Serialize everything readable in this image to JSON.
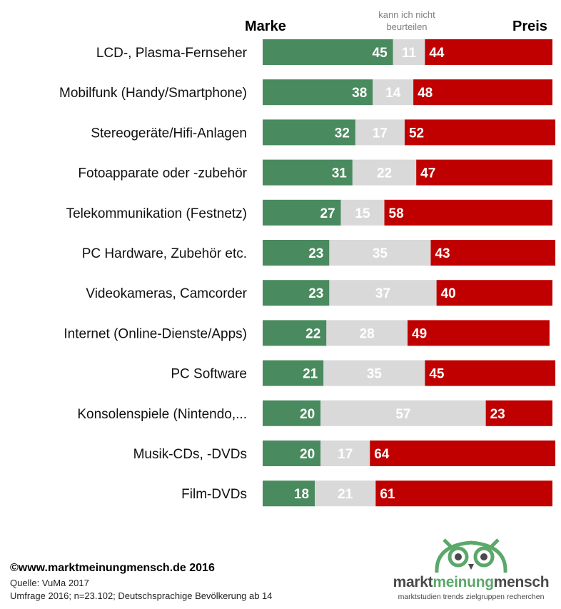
{
  "chart_data": {
    "type": "bar",
    "stacked": true,
    "orientation": "horizontal",
    "header_left": "Marke",
    "header_middle": [
      "kann ich nicht",
      "beurteilen"
    ],
    "header_right": "Preis",
    "categories": [
      "LCD-, Plasma-Fernseher",
      "Mobilfunk (Handy/Smartphone)",
      "Stereogeräte/Hifi-Anlagen",
      "Fotoapparate oder -zubehör",
      "Telekommunikation (Festnetz)",
      "PC Hardware, Zubehör etc.",
      "Videokameras, Camcorder",
      "Internet (Online-Dienste/Apps)",
      "PC Software",
      "Konsolenspiele (Nintendo,...",
      "Musik-CDs, -DVDs",
      "Film-DVDs"
    ],
    "series": [
      {
        "name": "Marke",
        "color": "#4a8a5f",
        "label_color": "#ffffff",
        "values": [
          45,
          38,
          32,
          31,
          27,
          23,
          23,
          22,
          21,
          20,
          20,
          18
        ]
      },
      {
        "name": "kann ich nicht beurteilen",
        "color": "#d9d9d9",
        "label_color": "#ffffff",
        "values": [
          11,
          14,
          17,
          22,
          15,
          35,
          37,
          28,
          35,
          57,
          17,
          21
        ]
      },
      {
        "name": "Preis",
        "color": "#c00000",
        "label_color": "#ffffff",
        "values": [
          44,
          48,
          52,
          47,
          58,
          43,
          40,
          49,
          45,
          23,
          64,
          61
        ]
      }
    ],
    "xlim": [
      0,
      100
    ]
  },
  "footer": {
    "copyright": "©www.marktmeinungmensch.de 2016",
    "source": "Quelle: VuMa 2017",
    "survey": "Umfrage 2016; n=23.102; Deutschsprachige Bevölkerung ab 14"
  },
  "logo": {
    "word_part1": "markt",
    "word_part2": "meinung",
    "word_part3": "mensch",
    "tagline": "marktstudien trends zielgruppen recherchen",
    "colors": {
      "dark": "#4a4a4a",
      "green": "#5aa86a"
    }
  }
}
